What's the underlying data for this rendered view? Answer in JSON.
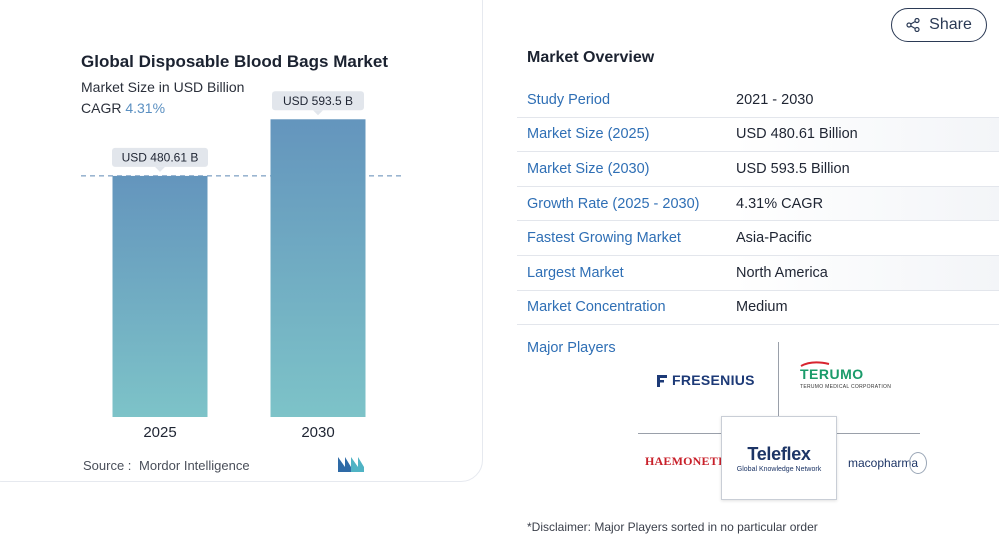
{
  "chart_data": {
    "type": "bar",
    "title": "Global Disposable Blood Bags Market",
    "subtitle": "Market Size in USD Billion",
    "cagr_label": "CAGR",
    "cagr_value": "4.31%",
    "categories": [
      "2025",
      "2030"
    ],
    "values": [
      480.61,
      593.5
    ],
    "data_labels": [
      "USD 480.61 B",
      "USD 593.5 B"
    ],
    "ylim": [
      0,
      620
    ],
    "grid": false,
    "reference_line": "dashed line at first bar value",
    "colors": {
      "bar_top": "#6495bd",
      "bar_bottom": "#7dc3c8",
      "label_bg": "#e2e6ec"
    }
  },
  "source": {
    "label": "Source :",
    "name": "Mordor Intelligence"
  },
  "share": {
    "label": "Share"
  },
  "overview": {
    "title": "Market Overview",
    "rows": [
      {
        "label": "Study Period",
        "value": "2021 - 2030"
      },
      {
        "label": "Market Size (2025)",
        "value": "USD 480.61 Billion"
      },
      {
        "label": "Market Size (2030)",
        "value": "USD 593.5 Billion"
      },
      {
        "label": "Growth Rate (2025 - 2030)",
        "value": "4.31% CAGR"
      },
      {
        "label": "Fastest Growing Market",
        "value": "Asia-Pacific"
      },
      {
        "label": "Largest Market",
        "value": "North America"
      },
      {
        "label": "Market Concentration",
        "value": "Medium"
      }
    ],
    "players_label": "Major Players",
    "players": {
      "fresenius": "FRESENIUS",
      "terumo": "TERUMO",
      "terumo_sub": "TERUMO MEDICAL CORPORATION",
      "haemonetics": "HAEMONETICS'",
      "teleflex": "Teleflex",
      "teleflex_sub": "Global Knowledge Network",
      "macopharma": "macopharma"
    }
  },
  "disclaimer": "*Disclaimer: Major Players sorted in no particular order",
  "icons": {
    "share": "share-icon",
    "brand": "mordor-logo-icon"
  }
}
